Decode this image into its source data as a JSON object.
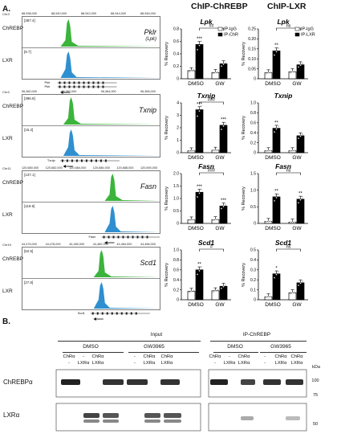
{
  "figure": {
    "panel_a": "A.",
    "panel_b": "B.",
    "col_titles": [
      "ChIP-ChREBP",
      "ChIP-LXR"
    ],
    "legend_chrebp": [
      "IP-IgG",
      "IP-ChR"
    ],
    "legend_lxr": [
      "IP-IgG",
      "IP-LXR"
    ],
    "ylabel": "% Recovery",
    "tracks": [
      {
        "chr": "Chr3",
        "coords": [
          "88,938,000",
          "88,940,000",
          "88,942,000",
          "88,944,000",
          "88,946,000"
        ],
        "gene": "Pklr",
        "gene_sub": "(Lpk)",
        "chrebp_scale": "[387.4]",
        "lxr_scale": "[8.7]",
        "tx_labels": [
          "Pklr",
          "Pklr"
        ],
        "peak_pos": 0.34
      },
      {
        "chr": "Chr3",
        "coords": [
          "96,360,000",
          "96,362,000",
          "96,364,000",
          "96,366,000"
        ],
        "gene": "Txnip",
        "gene_sub": "",
        "chrebp_scale": "[396.8]",
        "lxr_scale": "[15.2]",
        "tx_labels": [
          "Txnip"
        ],
        "peak_pos": 0.36
      },
      {
        "chr": "Chr11",
        "coords": [
          "120,680,000",
          "120,682,000",
          "120,684,000",
          "120,686,000",
          "120,688,000",
          "120,690,000"
        ],
        "gene": "Fasn",
        "gene_sub": "",
        "chrebp_scale": "[137.1]",
        "lxr_scale": "[119.6]",
        "tx_labels": [
          "Fasn"
        ],
        "peak_pos": 0.66
      },
      {
        "chr": "Chr19",
        "coords": [
          "44,476,000",
          "44,478,000",
          "44,480,000",
          "44,482,000",
          "44,484,000",
          "44,486,000"
        ],
        "gene": "Scd1",
        "gene_sub": "",
        "chrebp_scale": "[52.5]",
        "lxr_scale": "[27.6]",
        "tx_labels": [
          "Scd1"
        ],
        "peak_pos": 0.58
      }
    ],
    "chip_charts": [
      {
        "gene": "Lpk",
        "ylim": [
          0,
          0.8
        ],
        "ticks": [
          "0",
          "0.2",
          "0.4",
          "0.6",
          "0.8"
        ],
        "values": [
          0.13,
          0.55,
          0.1,
          0.24
        ],
        "stars": [
          "",
          "***",
          "",
          ""
        ],
        "bracket": "##"
      },
      {
        "gene": "Txnip",
        "ylim": [
          0,
          4
        ],
        "ticks": [
          "0",
          "1",
          "2",
          "3",
          "4"
        ],
        "values": [
          0.15,
          3.45,
          0.2,
          2.2
        ],
        "stars": [
          "",
          "***",
          "",
          "***"
        ],
        "bracket": "###"
      },
      {
        "gene": "Fasn",
        "ylim": [
          0,
          2.0
        ],
        "ticks": [
          "0",
          "0.5",
          "1.0",
          "1.5",
          "2.0"
        ],
        "values": [
          0.14,
          1.25,
          0.15,
          0.7
        ],
        "stars": [
          "",
          "***",
          "",
          "***"
        ],
        "bracket": "###"
      },
      {
        "gene": "Scd1",
        "ylim": [
          0,
          1.0
        ],
        "ticks": [
          "0",
          "0.2",
          "0.4",
          "0.6",
          "0.8",
          "1.0"
        ],
        "values": [
          0.17,
          0.6,
          0.18,
          0.27
        ],
        "stars": [
          "",
          "**",
          "",
          ""
        ],
        "bracket": "#"
      }
    ],
    "lxr_charts": [
      {
        "gene": "Lpk",
        "ylim": [
          0,
          0.25
        ],
        "ticks": [
          "0",
          "0.05",
          "0.10",
          "0.15",
          "0.20",
          "0.25"
        ],
        "values": [
          0.03,
          0.14,
          0.035,
          0.07
        ],
        "stars": [
          "",
          "**",
          "",
          ""
        ],
        "bracket": "ns"
      },
      {
        "gene": "Txnip",
        "ylim": [
          0,
          1.0
        ],
        "ticks": [
          "0",
          "0.2",
          "0.4",
          "0.6",
          "0.8",
          "1.0"
        ],
        "values": [
          0.04,
          0.49,
          0.04,
          0.34
        ],
        "stars": [
          "",
          "**",
          "",
          ""
        ],
        "bracket": ""
      },
      {
        "gene": "Fasn",
        "ylim": [
          0,
          1.5
        ],
        "ticks": [
          "0",
          "0.5",
          "1.0",
          "1.5"
        ],
        "values": [
          0.06,
          0.8,
          0.04,
          0.73
        ],
        "stars": [
          "",
          "**",
          "",
          "**"
        ],
        "bracket": "ns"
      },
      {
        "gene": "Scd1",
        "ylim": [
          0,
          0.5
        ],
        "ticks": [
          "0",
          "0.1",
          "0.2",
          "0.3",
          "0.4",
          "0.5"
        ],
        "values": [
          0.03,
          0.26,
          0.07,
          0.17
        ],
        "stars": [
          "",
          "*",
          "",
          ""
        ],
        "bracket": "ns"
      }
    ],
    "x_groups": [
      "DMSO",
      "GW"
    ],
    "western": {
      "input": "Input",
      "ip": "IP-ChREBP",
      "treat": [
        "DMSO",
        "GW3965"
      ],
      "row1": [
        "ChRα",
        "-",
        "ChRα",
        "-",
        "ChRα",
        "ChRα"
      ],
      "row2": [
        "-",
        "LXRα",
        "LXRα",
        "-",
        "LXRα",
        "LXRα"
      ],
      "kda": "kDa",
      "markers": [
        "100",
        "75",
        "50"
      ],
      "bands": [
        "ChREBPα",
        "LXRα"
      ]
    }
  }
}
